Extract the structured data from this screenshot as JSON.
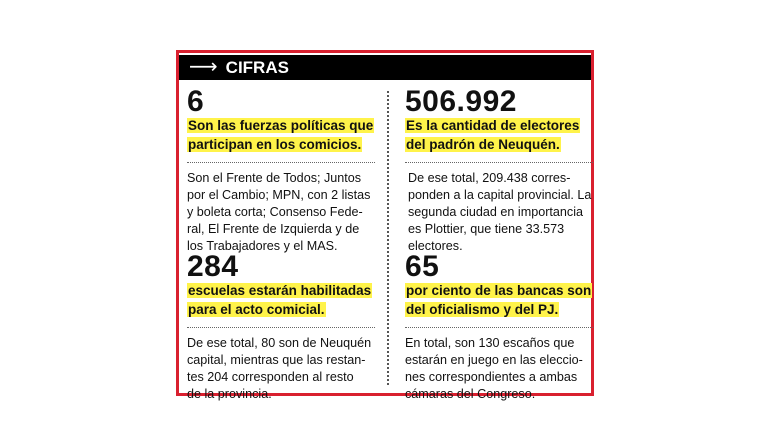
{
  "header": {
    "icon": "arrow-right-icon",
    "title": "CIFRAS"
  },
  "colors": {
    "border": "#d9202f",
    "header_bg": "#000000",
    "highlight": "#fff34a"
  },
  "cells": [
    {
      "number": "6",
      "highlight": [
        "Son las fuerzas políticas que",
        "participan en los comicios."
      ],
      "body": [
        "Son el Frente de Todos; Juntos",
        "por el Cambio; MPN, con 2 listas",
        "y boleta corta; Consenso Fede-",
        "ral, El Frente de Izquierda y de",
        "los Trabajadores y el MAS."
      ]
    },
    {
      "number": "506.992",
      "highlight": [
        "Es la cantidad de electores",
        "del padrón de Neuquén."
      ],
      "body": [
        "De ese total, 209.438 corres-",
        "ponden a la capital provincial. La",
        "segunda ciudad en importancia",
        "es Plottier, que tiene 33.573",
        "electores."
      ]
    },
    {
      "number": "284",
      "highlight": [
        "escuelas estarán habilitadas",
        "para el acto comicial."
      ],
      "body": [
        "De ese total, 80 son de Neuquén",
        "capital, mientras que las restan-",
        "tes 204 corresponden al resto",
        "de la provincia."
      ]
    },
    {
      "number": "65",
      "highlight": [
        "por ciento de las bancas son",
        "del oficialismo y del PJ."
      ],
      "body": [
        "En total, son 130 escaños que",
        "estarán en juego en las eleccio-",
        "nes correspondientes a ambas",
        "cámaras del Congreso."
      ]
    }
  ]
}
